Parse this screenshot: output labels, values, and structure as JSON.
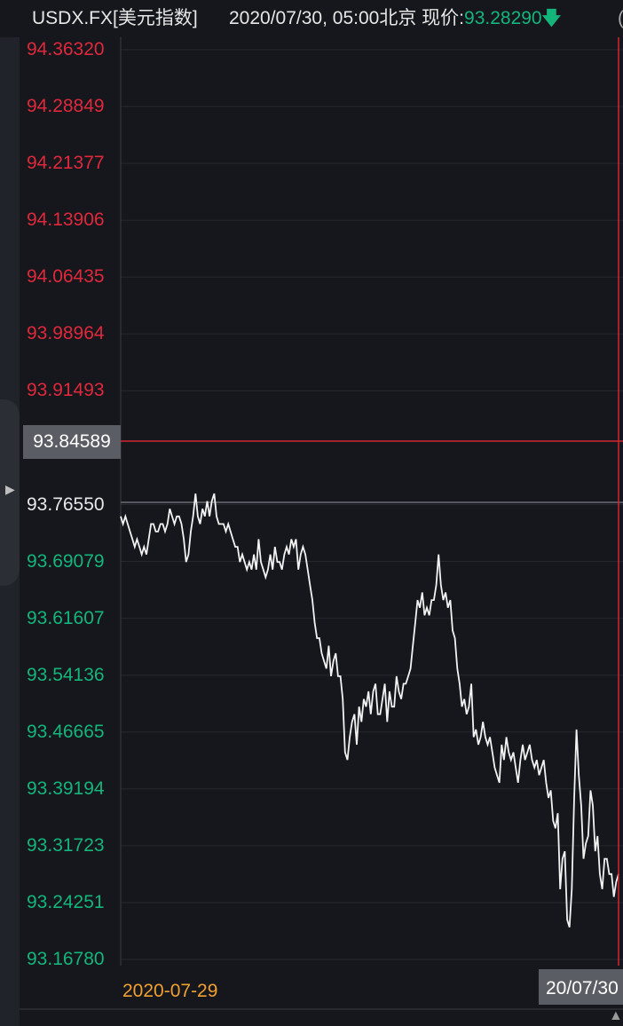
{
  "header": {
    "symbol": "USDX.FX[美元指数]",
    "datetime": "2020/07/30, 05:00北京",
    "price_label": "现价:",
    "price": "93.28290",
    "direction_icon": "arrow-down-icon",
    "arrow_glyph": "🡇",
    "overflow_text": "("
  },
  "crosshair": {
    "price": "93.84589",
    "time": "20/07/30"
  },
  "colors": {
    "up": "#e0283c",
    "down": "#14b57a",
    "line": "#f2f2f2",
    "crosshair": "#d0262f",
    "date_label": "#f0a030",
    "background": "#15171c"
  },
  "chart_data": {
    "type": "line",
    "title": "",
    "xlabel": "",
    "ylabel": "",
    "ylim": [
      93.1678,
      94.3632
    ],
    "y_ticks": [
      "94.36320",
      "94.28849",
      "94.21377",
      "94.13906",
      "94.06435",
      "93.98964",
      "93.91493",
      "93.84589",
      "93.76550",
      "93.69079",
      "93.61607",
      "93.54136",
      "93.46665",
      "93.39194",
      "93.31723",
      "93.24251",
      "93.16780"
    ],
    "reference_price": 93.7655,
    "x_tick_labels": [
      "2020-07-29"
    ],
    "x_range": [
      "2020-07-29",
      "2020-07-30"
    ],
    "series": [
      {
        "values": [
          93.75,
          93.74,
          93.75,
          93.74,
          93.73,
          93.72,
          93.71,
          93.72,
          93.71,
          93.7,
          93.71,
          93.7,
          93.72,
          93.74,
          93.74,
          93.73,
          93.73,
          93.74,
          93.74,
          93.73,
          93.74,
          93.76,
          93.75,
          93.74,
          93.75,
          93.75,
          93.74,
          93.72,
          93.69,
          93.7,
          93.73,
          93.75,
          93.78,
          93.75,
          93.74,
          93.76,
          93.75,
          93.77,
          93.75,
          93.77,
          93.78,
          93.75,
          93.74,
          93.74,
          93.74,
          93.73,
          93.74,
          93.73,
          93.72,
          93.71,
          93.71,
          93.69,
          93.7,
          93.69,
          93.68,
          93.69,
          93.68,
          93.7,
          93.68,
          93.72,
          93.69,
          93.68,
          93.67,
          93.68,
          93.7,
          93.68,
          93.71,
          93.69,
          93.69,
          93.68,
          93.7,
          93.71,
          93.7,
          93.72,
          93.71,
          93.72,
          93.68,
          93.7,
          93.71,
          93.7,
          93.68,
          93.66,
          93.64,
          93.61,
          93.59,
          93.59,
          93.57,
          93.56,
          93.55,
          93.58,
          93.54,
          93.56,
          93.57,
          93.54,
          93.54,
          93.51,
          93.44,
          93.43,
          93.46,
          93.48,
          93.49,
          93.45,
          93.5,
          93.48,
          93.51,
          93.5,
          93.52,
          93.49,
          93.52,
          93.53,
          93.49,
          93.49,
          93.51,
          93.53,
          93.48,
          93.52,
          93.5,
          93.5,
          93.54,
          93.52,
          93.51,
          93.53,
          93.53,
          93.54,
          93.55,
          93.58,
          93.61,
          93.64,
          93.63,
          93.65,
          93.62,
          93.63,
          93.62,
          93.64,
          93.64,
          93.66,
          93.7,
          93.66,
          93.64,
          93.65,
          93.63,
          93.64,
          93.6,
          93.59,
          93.55,
          93.53,
          93.5,
          93.51,
          93.49,
          93.5,
          93.53,
          93.46,
          93.47,
          93.45,
          93.46,
          93.48,
          93.46,
          93.45,
          93.46,
          93.44,
          93.42,
          93.41,
          93.4,
          93.45,
          93.43,
          93.46,
          93.44,
          93.43,
          93.44,
          93.42,
          93.4,
          93.43,
          93.45,
          93.43,
          93.44,
          93.45,
          93.43,
          93.42,
          93.43,
          93.41,
          93.42,
          93.43,
          93.4,
          93.38,
          93.39,
          93.35,
          93.34,
          93.36,
          93.26,
          93.3,
          93.31,
          93.22,
          93.21,
          93.26,
          93.38,
          93.47,
          93.41,
          93.37,
          93.3,
          93.32,
          93.33,
          93.39,
          93.37,
          93.31,
          93.33,
          93.28,
          93.26,
          93.3,
          93.3,
          93.28,
          93.28,
          93.25,
          93.27,
          93.28
        ]
      }
    ]
  }
}
